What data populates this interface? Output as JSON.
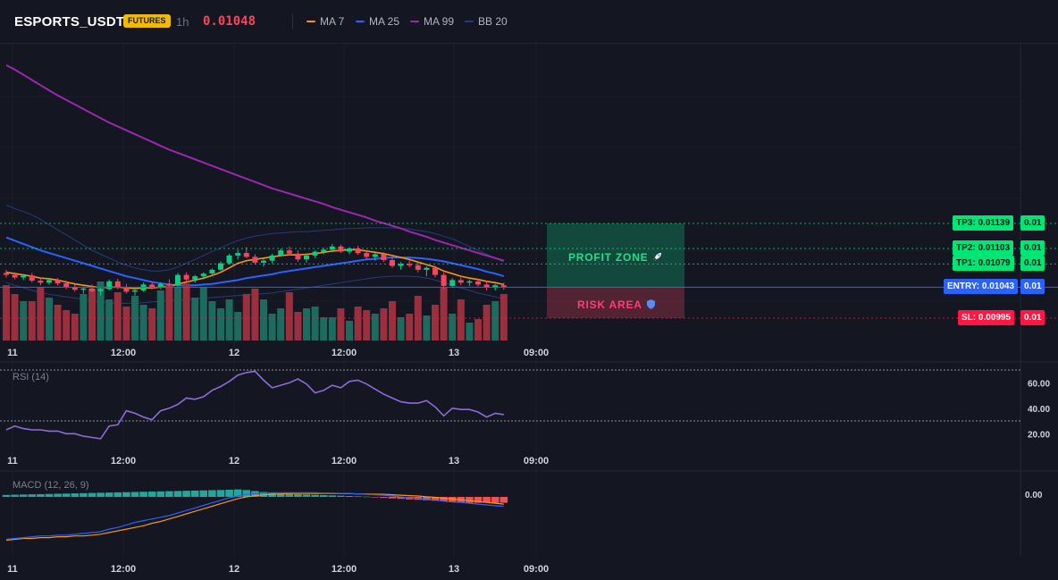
{
  "header": {
    "symbol": "ESPORTS_USDT",
    "badge": "FUTURES",
    "timeframe": "1h",
    "price": "0.01048",
    "legend": [
      {
        "label": "MA 7",
        "color": "#f7931a"
      },
      {
        "label": "MA 25",
        "color": "#2962ff"
      },
      {
        "label": "MA 99",
        "color": "#9c27b0"
      },
      {
        "label": "BB 20",
        "color": "#1e3a8a"
      }
    ]
  },
  "colors": {
    "bull": "#0ecb81",
    "bear": "#f6465d",
    "bullVol": "#1b6b5f",
    "bearVol": "#9a2f3d",
    "tp": "#00e676",
    "entry": "#2962ff",
    "sl": "#ff1744",
    "rsi": "#8e6bd6",
    "macdLine": "#2962ff",
    "signalLine": "#f7931a",
    "histPos": "#26a69a",
    "histNeg": "#ef5350"
  },
  "icons": {
    "profit": "rocket-icon",
    "risk": "shield-icon"
  },
  "chart_data": [
    {
      "type": "candlestick",
      "name": "price",
      "x_labels": [
        "11",
        "12:00",
        "12",
        "12:00",
        "13",
        "09:00"
      ],
      "levels": [
        {
          "label": "TP3: 0.01139",
          "value": 0.01139,
          "axis": "0.01",
          "kind": "tp"
        },
        {
          "label": "TP2: 0.01103",
          "value": 0.01103,
          "axis": "0.01",
          "kind": "tp"
        },
        {
          "label": "TP1: 0.01079",
          "value": 0.01079,
          "axis": "0.01",
          "kind": "tp"
        },
        {
          "label": "ENTRY: 0.01043",
          "value": 0.01043,
          "axis": "0.01",
          "kind": "entry"
        },
        {
          "label": "SL: 0.00995",
          "value": 0.00995,
          "axis": "0.01",
          "kind": "sl"
        }
      ],
      "zones": {
        "profit": "PROFIT ZONE",
        "risk": "RISK AREA"
      },
      "candles": [
        [
          0.01065,
          0.0107,
          0.01058,
          0.01062
        ],
        [
          0.01062,
          0.01066,
          0.01055,
          0.01058
        ],
        [
          0.01058,
          0.01063,
          0.01054,
          0.01061
        ],
        [
          0.01061,
          0.01065,
          0.0105,
          0.01053
        ],
        [
          0.01053,
          0.01058,
          0.01046,
          0.0105
        ],
        [
          0.0105,
          0.01056,
          0.01047,
          0.01054
        ],
        [
          0.01054,
          0.01057,
          0.01046,
          0.01049
        ],
        [
          0.01049,
          0.01053,
          0.0104,
          0.01043
        ],
        [
          0.01043,
          0.01047,
          0.01036,
          0.01039
        ],
        [
          0.01039,
          0.01044,
          0.01033,
          0.01041
        ],
        [
          0.01041,
          0.01047,
          0.01035,
          0.01037
        ],
        [
          0.01037,
          0.01043,
          0.0103,
          0.0104
        ],
        [
          0.0104,
          0.01055,
          0.01038,
          0.01052
        ],
        [
          0.01052,
          0.01056,
          0.0104,
          0.01043
        ],
        [
          0.01043,
          0.01048,
          0.01033,
          0.01036
        ],
        [
          0.01036,
          0.01042,
          0.0103,
          0.01038
        ],
        [
          0.01038,
          0.0105,
          0.01036,
          0.01047
        ],
        [
          0.01047,
          0.01051,
          0.0104,
          0.01043
        ],
        [
          0.01043,
          0.0105,
          0.0104,
          0.01048
        ],
        [
          0.01048,
          0.01055,
          0.01044,
          0.01046
        ],
        [
          0.01046,
          0.01065,
          0.01044,
          0.01062
        ],
        [
          0.01062,
          0.01066,
          0.01052,
          0.01055
        ],
        [
          0.01055,
          0.01062,
          0.0105,
          0.0106
        ],
        [
          0.0106,
          0.01066,
          0.01055,
          0.01064
        ],
        [
          0.01064,
          0.01072,
          0.0106,
          0.0107
        ],
        [
          0.0107,
          0.01083,
          0.01068,
          0.0108
        ],
        [
          0.0108,
          0.01095,
          0.01078,
          0.01092
        ],
        [
          0.01092,
          0.01101,
          0.01086,
          0.01096
        ],
        [
          0.01096,
          0.01105,
          0.01088,
          0.0109
        ],
        [
          0.0109,
          0.01094,
          0.01078,
          0.01081
        ],
        [
          0.01081,
          0.01087,
          0.01075,
          0.01084
        ],
        [
          0.01084,
          0.01095,
          0.0108,
          0.01092
        ],
        [
          0.01092,
          0.01103,
          0.0109,
          0.011
        ],
        [
          0.011,
          0.01106,
          0.01092,
          0.01095
        ],
        [
          0.01095,
          0.011,
          0.01082,
          0.01086
        ],
        [
          0.01086,
          0.01094,
          0.01081,
          0.01092
        ],
        [
          0.01092,
          0.011,
          0.01088,
          0.01098
        ],
        [
          0.01098,
          0.01104,
          0.01094,
          0.01101
        ],
        [
          0.01101,
          0.0111,
          0.01097,
          0.01106
        ],
        [
          0.01106,
          0.01109,
          0.01096,
          0.01098
        ],
        [
          0.01098,
          0.01105,
          0.01094,
          0.01103
        ],
        [
          0.01103,
          0.01107,
          0.01093,
          0.01096
        ],
        [
          0.01096,
          0.01101,
          0.01086,
          0.0109
        ],
        [
          0.0109,
          0.01096,
          0.01084,
          0.01094
        ],
        [
          0.01094,
          0.01097,
          0.01082,
          0.01085
        ],
        [
          0.01085,
          0.0109,
          0.01073,
          0.01076
        ],
        [
          0.01076,
          0.01082,
          0.0107,
          0.01079
        ],
        [
          0.01079,
          0.01085,
          0.01074,
          0.01077
        ],
        [
          0.01077,
          0.01082,
          0.01066,
          0.0107
        ],
        [
          0.0107,
          0.01075,
          0.0106,
          0.01073
        ],
        [
          0.01073,
          0.01076,
          0.01058,
          0.01062
        ],
        [
          0.01062,
          0.01066,
          0.0104,
          0.01045
        ],
        [
          0.01045,
          0.01057,
          0.01042,
          0.01054
        ],
        [
          0.01054,
          0.01058,
          0.01046,
          0.0105
        ],
        [
          0.0105,
          0.01055,
          0.01045,
          0.01052
        ],
        [
          0.01052,
          0.01056,
          0.01044,
          0.01047
        ],
        [
          0.01047,
          0.01052,
          0.01038,
          0.01042
        ],
        [
          0.01042,
          0.01048,
          0.01038,
          0.01046
        ],
        [
          0.01046,
          0.0105,
          0.01039,
          0.01043
        ]
      ],
      "volume": [
        62,
        52,
        44,
        44,
        60,
        48,
        40,
        34,
        30,
        52,
        58,
        66,
        46,
        54,
        38,
        50,
        40,
        36,
        56,
        62,
        60,
        64,
        48,
        60,
        44,
        36,
        46,
        32,
        52,
        58,
        46,
        30,
        36,
        54,
        32,
        36,
        38,
        26,
        26,
        36,
        22,
        38,
        34,
        30,
        36,
        44,
        26,
        30,
        50,
        28,
        40,
        60,
        30,
        46,
        20,
        24,
        40,
        44,
        52
      ],
      "ma7": [
        0.01066,
        0.01064,
        0.01062,
        0.0106,
        0.01057,
        0.01056,
        0.01054,
        0.01051,
        0.01048,
        0.01046,
        0.01044,
        0.01042,
        0.01043,
        0.01043,
        0.01042,
        0.01041,
        0.01042,
        0.01042,
        0.01043,
        0.01044,
        0.01048,
        0.01051,
        0.01054,
        0.01057,
        0.01061,
        0.01066,
        0.01073,
        0.0108,
        0.01084,
        0.01086,
        0.01088,
        0.0109,
        0.01092,
        0.01093,
        0.01093,
        0.01094,
        0.01095,
        0.01097,
        0.01099,
        0.011,
        0.01101,
        0.01101,
        0.01099,
        0.01097,
        0.01095,
        0.01092,
        0.01089,
        0.01086,
        0.01082,
        0.01078,
        0.01074,
        0.01068,
        0.01064,
        0.0106,
        0.01057,
        0.01055,
        0.01052,
        0.0105,
        0.01047
      ],
      "ma25": [
        0.0112,
        0.01115,
        0.0111,
        0.01105,
        0.011,
        0.01096,
        0.01092,
        0.01088,
        0.01084,
        0.0108,
        0.01076,
        0.01072,
        0.01068,
        0.01064,
        0.0106,
        0.01057,
        0.01054,
        0.01051,
        0.01049,
        0.01047,
        0.01046,
        0.01046,
        0.01046,
        0.01047,
        0.01048,
        0.0105,
        0.01052,
        0.01054,
        0.01057,
        0.01059,
        0.01061,
        0.01063,
        0.01066,
        0.01068,
        0.0107,
        0.01072,
        0.01074,
        0.01076,
        0.01078,
        0.0108,
        0.01082,
        0.01084,
        0.01086,
        0.01087,
        0.01088,
        0.01089,
        0.01089,
        0.01089,
        0.01088,
        0.01087,
        0.01085,
        0.01083,
        0.0108,
        0.01077,
        0.01074,
        0.01071,
        0.01067,
        0.01064,
        0.0106
      ],
      "ma99": [
        0.01387,
        0.0138,
        0.01372,
        0.01364,
        0.01356,
        0.01348,
        0.0134,
        0.01333,
        0.01326,
        0.01319,
        0.01312,
        0.01305,
        0.01298,
        0.01292,
        0.01286,
        0.0128,
        0.01274,
        0.01268,
        0.01262,
        0.01256,
        0.01251,
        0.01246,
        0.01241,
        0.01236,
        0.01231,
        0.01226,
        0.01221,
        0.01216,
        0.01211,
        0.01206,
        0.01201,
        0.01196,
        0.01192,
        0.01188,
        0.01184,
        0.0118,
        0.01176,
        0.01172,
        0.01167,
        0.01163,
        0.01159,
        0.01155,
        0.01151,
        0.01146,
        0.01142,
        0.01138,
        0.01134,
        0.01129,
        0.01125,
        0.01121,
        0.01116,
        0.01112,
        0.01108,
        0.01104,
        0.011,
        0.01096,
        0.01092,
        0.01088,
        0.01084
      ],
      "bb_upper": [
        0.0117,
        0.01165,
        0.0116,
        0.01155,
        0.01148,
        0.0114,
        0.01132,
        0.01124,
        0.01116,
        0.01108,
        0.011,
        0.01094,
        0.01088,
        0.01082,
        0.01077,
        0.01073,
        0.0107,
        0.01068,
        0.01068,
        0.0107,
        0.01074,
        0.0108,
        0.01086,
        0.01092,
        0.01098,
        0.01104,
        0.0111,
        0.01115,
        0.01119,
        0.01122,
        0.01124,
        0.01126,
        0.01127,
        0.01128,
        0.01129,
        0.01129,
        0.0113,
        0.01131,
        0.01132,
        0.01133,
        0.01134,
        0.01134,
        0.01135,
        0.01135,
        0.01135,
        0.01135,
        0.01134,
        0.01133,
        0.01131,
        0.01129,
        0.01126,
        0.01122,
        0.01118,
        0.01112,
        0.01106,
        0.011,
        0.01094,
        0.01088,
        0.01082
      ],
      "bb_lower": [
        0.0105,
        0.01046,
        0.01042,
        0.01038,
        0.01035,
        0.01032,
        0.0103,
        0.01028,
        0.01026,
        0.01024,
        0.01022,
        0.0102,
        0.01019,
        0.01018,
        0.01018,
        0.01018,
        0.01019,
        0.0102,
        0.01021,
        0.01022,
        0.01023,
        0.01024,
        0.01025,
        0.01026,
        0.01027,
        0.01028,
        0.01029,
        0.0103,
        0.01031,
        0.01032,
        0.01033,
        0.01034,
        0.01036,
        0.01038,
        0.0104,
        0.01042,
        0.01044,
        0.01046,
        0.01048,
        0.0105,
        0.01052,
        0.01054,
        0.01056,
        0.01058,
        0.01059,
        0.0106,
        0.0106,
        0.0106,
        0.01059,
        0.01057,
        0.01054,
        0.0105,
        0.01046,
        0.01042,
        0.01038,
        0.01034,
        0.01031,
        0.01028,
        0.01025
      ]
    },
    {
      "type": "line",
      "name": "RSI (14)",
      "ticks": [
        "60.00",
        "40.00",
        "20.00"
      ],
      "bands": [
        70,
        30
      ],
      "x_labels": [
        "11",
        "12:00",
        "12",
        "12:00",
        "13",
        "09:00"
      ],
      "values": [
        23,
        26,
        24,
        23,
        23,
        22,
        22,
        20,
        20,
        18,
        17,
        16,
        26,
        27,
        38,
        36,
        33,
        31,
        38,
        40,
        43,
        48,
        47,
        49,
        54,
        57,
        61,
        66,
        68,
        69,
        62,
        56,
        58,
        60,
        63,
        59,
        52,
        54,
        58,
        56,
        61,
        62,
        59,
        55,
        51,
        48,
        45,
        44,
        44,
        46,
        41,
        34,
        40,
        39,
        39,
        37,
        33,
        36,
        35
      ]
    },
    {
      "type": "bar+line",
      "name": "MACD (12, 26, 9)",
      "ticks": [
        "0.00"
      ],
      "x_labels": [
        "11",
        "12:00",
        "12",
        "12:00",
        "13",
        "09:00"
      ],
      "histogram": [
        2,
        2.2,
        2.4,
        2.6,
        2.8,
        3,
        3.2,
        3.4,
        3.6,
        3.8,
        4,
        4.2,
        4.4,
        4.6,
        4.8,
        5,
        5.2,
        5.4,
        5.6,
        5.8,
        6,
        6.2,
        6.4,
        6.6,
        6.8,
        7,
        7.3,
        7.6,
        7,
        6,
        5,
        4,
        3.5,
        3,
        2.7,
        2.4,
        2.1,
        1.8,
        1.5,
        1.2,
        0.9,
        0.6,
        0.3,
        -0.5,
        -1,
        -1.5,
        -2,
        -2.5,
        -3,
        -3.5,
        -4,
        -4.5,
        -5,
        -5.5,
        -6,
        -6,
        -6,
        -6,
        -6
      ],
      "macd": [
        -50,
        -49,
        -48,
        -47,
        -46,
        -46,
        -45,
        -45,
        -44,
        -43,
        -42,
        -41,
        -38,
        -36,
        -33,
        -30,
        -28,
        -26,
        -24,
        -22,
        -19,
        -16,
        -13,
        -10,
        -7,
        -4,
        -1,
        1,
        3,
        4,
        4.5,
        4.8,
        5,
        5,
        5,
        4.8,
        4.8,
        4.5,
        4.5,
        4,
        4,
        3.5,
        3,
        2.5,
        2,
        1,
        0,
        -1,
        -2,
        -3,
        -4,
        -5,
        -6,
        -6.5,
        -7.5,
        -8.5,
        -9.5,
        -10.5,
        -11
      ],
      "signal": [
        -51,
        -50,
        -49,
        -49,
        -48,
        -48,
        -47,
        -47,
        -46,
        -46,
        -45,
        -44,
        -42,
        -40,
        -38,
        -36,
        -34,
        -31,
        -29,
        -26,
        -23,
        -20,
        -17,
        -14,
        -11,
        -8,
        -5,
        -2,
        0,
        1.5,
        2.5,
        3,
        3.5,
        4,
        4,
        4,
        4,
        4,
        4,
        3.8,
        3.8,
        3.5,
        3.5,
        3.2,
        3,
        2.5,
        2,
        1.5,
        1,
        0.2,
        -0.5,
        -1.5,
        -2.5,
        -3.5,
        -4.5,
        -5.5,
        -6.5,
        -7.5,
        -8.5
      ]
    }
  ]
}
